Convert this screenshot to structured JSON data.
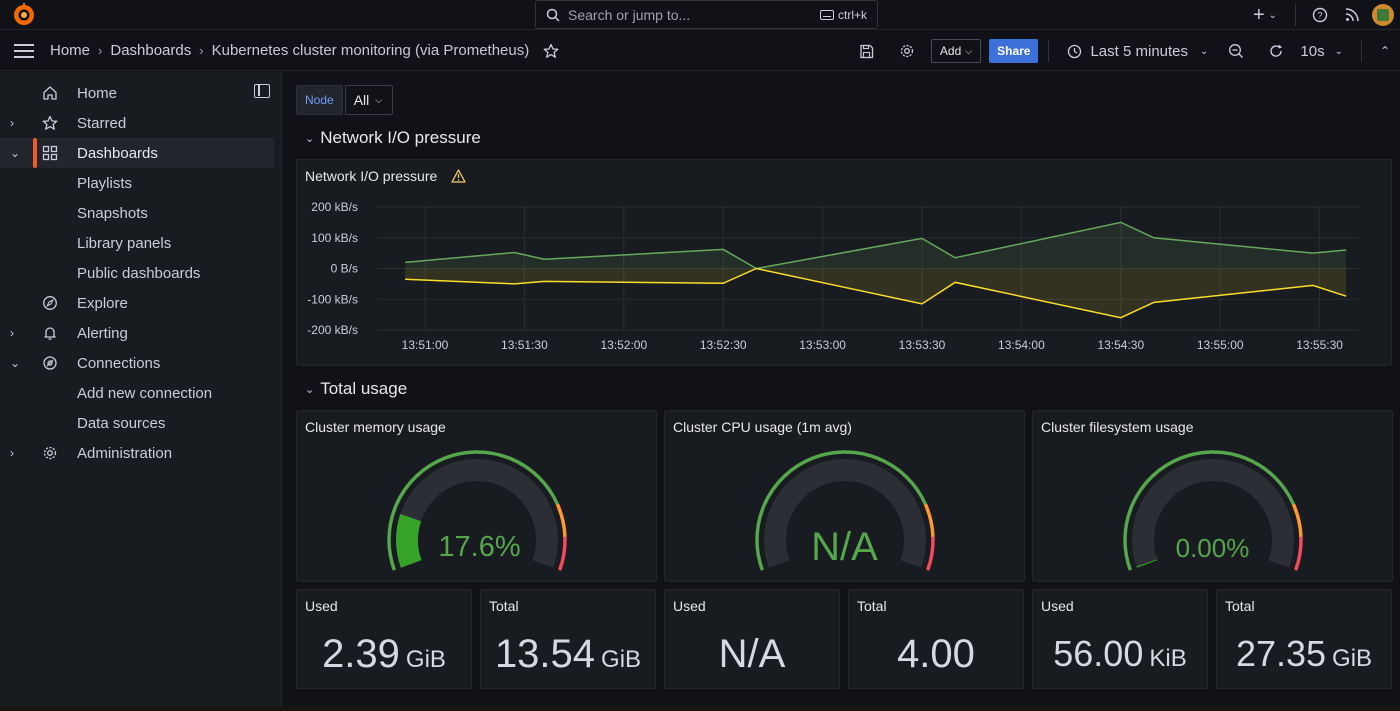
{
  "topbar": {
    "search_placeholder": "Search or jump to...",
    "search_shortcut": "ctrl+k",
    "icons": [
      "grafana-logo",
      "plus-icon",
      "help-icon",
      "news-icon",
      "avatar"
    ]
  },
  "navbar": {
    "breadcrumb": [
      "Home",
      "Dashboards",
      "Kubernetes cluster monitoring (via Prometheus)"
    ],
    "add_label": "Add",
    "share_label": "Share",
    "time_range": "Last 5 minutes",
    "refresh_interval": "10s"
  },
  "sidebar": {
    "items": [
      {
        "label": "Home",
        "icon": "home-icon",
        "expandable": false
      },
      {
        "label": "Starred",
        "icon": "star-icon",
        "expandable": true
      },
      {
        "label": "Dashboards",
        "icon": "apps-icon",
        "expandable": true,
        "expanded": true,
        "active": true
      },
      {
        "label": "Playlists",
        "sub": true
      },
      {
        "label": "Snapshots",
        "sub": true
      },
      {
        "label": "Library panels",
        "sub": true
      },
      {
        "label": "Public dashboards",
        "sub": true
      },
      {
        "label": "Explore",
        "icon": "compass-icon",
        "expandable": false
      },
      {
        "label": "Alerting",
        "icon": "bell-icon",
        "expandable": true
      },
      {
        "label": "Connections",
        "icon": "plug-icon",
        "expandable": true,
        "expanded": true
      },
      {
        "label": "Add new connection",
        "sub": true
      },
      {
        "label": "Data sources",
        "sub": true
      },
      {
        "label": "Administration",
        "icon": "gear-icon",
        "expandable": true
      }
    ]
  },
  "variables": {
    "node_label": "Node",
    "node_value": "All"
  },
  "rows": {
    "network_title": "Network I/O pressure",
    "total_title": "Total usage"
  },
  "network_panel": {
    "title": "Network I/O pressure",
    "chart_data": {
      "type": "area",
      "y_ticks": [
        "200 kB/s",
        "100 kB/s",
        "0 B/s",
        "-100 kB/s",
        "-200 kB/s"
      ],
      "ylim": [
        -200,
        200
      ],
      "x_ticks": [
        "13:51:00",
        "13:51:30",
        "13:52:00",
        "13:52:30",
        "13:53:00",
        "13:53:30",
        "13:54:00",
        "13:54:30",
        "13:55:00",
        "13:55:30"
      ],
      "x_seconds": [
        0,
        20,
        34,
        38,
        94,
        100,
        160,
        168,
        190,
        258,
        262,
        290,
        300,
        305,
        370,
        380,
        416,
        434,
        500,
        510,
        530,
        536,
        542
      ],
      "series": [
        {
          "color": "#73bf69",
          "points": [
            [
              -6,
              20
            ],
            [
              27,
              52
            ],
            [
              36,
              30
            ],
            [
              90,
              62
            ],
            [
              100,
              0
            ],
            [
              150,
              98
            ],
            [
              160,
              35
            ],
            [
              210,
              150
            ],
            [
              220,
              100
            ],
            [
              268,
              50
            ],
            [
              278,
              60
            ]
          ]
        },
        {
          "color": "#fade2a",
          "points": [
            [
              -6,
              -35
            ],
            [
              27,
              -50
            ],
            [
              36,
              -42
            ],
            [
              90,
              -48
            ],
            [
              100,
              0
            ],
            [
              150,
              -115
            ],
            [
              160,
              -45
            ],
            [
              210,
              -160
            ],
            [
              220,
              -110
            ],
            [
              268,
              -55
            ],
            [
              278,
              -90
            ]
          ]
        }
      ],
      "grid": true
    }
  },
  "gauges": [
    {
      "title": "Cluster memory usage",
      "value": "17.6%",
      "fraction": 0.176,
      "value_color": "#56a64b"
    },
    {
      "title": "Cluster CPU usage (1m avg)",
      "value": "N/A",
      "fraction": 0,
      "value_color": "#56a64b"
    },
    {
      "title": "Cluster filesystem usage",
      "value": "0.00%",
      "fraction": 0.0,
      "value_color": "#56a64b"
    }
  ],
  "stats": [
    {
      "title": "Used",
      "value": "2.39",
      "unit": "GiB"
    },
    {
      "title": "Total",
      "value": "13.54",
      "unit": "GiB"
    },
    {
      "title": "Used",
      "value": "N/A",
      "unit": ""
    },
    {
      "title": "Total",
      "value": "4.00",
      "unit": ""
    },
    {
      "title": "Used",
      "value": "56.00",
      "unit": "KiB"
    },
    {
      "title": "Total",
      "value": "27.35",
      "unit": "GiB"
    }
  ],
  "colors": {
    "accent": "#f05a28",
    "share": "#3d71d9",
    "green": "#73bf69",
    "yellow": "#fade2a",
    "orange": "#ff9830",
    "red": "#f2495c"
  }
}
